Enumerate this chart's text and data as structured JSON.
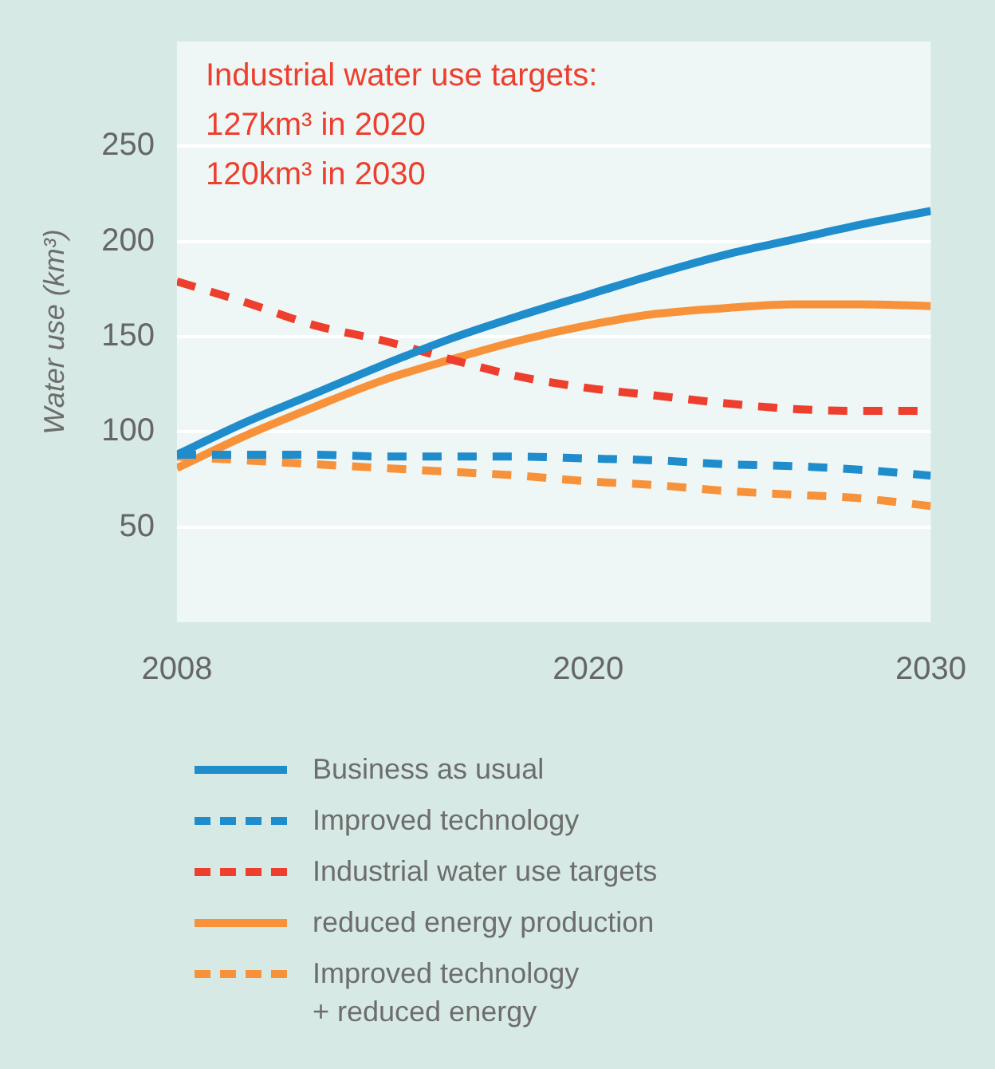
{
  "chart_data": {
    "type": "line",
    "ylabel": "Water use (km³)",
    "annotations": [
      "Industrial water use targets:",
      "127km³ in 2020",
      "120km³ in 2030"
    ],
    "x": [
      2008,
      2010,
      2012,
      2014,
      2016,
      2018,
      2020,
      2022,
      2024,
      2026,
      2028,
      2030
    ],
    "series": [
      {
        "name": "Business as usual",
        "color": "#1f8ccc",
        "line_style": "solid",
        "values": [
          88,
          105,
          120,
          135,
          149,
          161,
          172,
          183,
          193,
          201,
          209,
          216
        ]
      },
      {
        "name": "Improved technology",
        "color": "#1f8ccc",
        "line_style": "dashed",
        "values": [
          88,
          88,
          88,
          87,
          87,
          87,
          86,
          85,
          83,
          82,
          80,
          77
        ]
      },
      {
        "name": "Industrial water use targets",
        "color": "#ee3e2d",
        "line_style": "dashed",
        "values": [
          179,
          168,
          156,
          148,
          138,
          129,
          123,
          119,
          115,
          112,
          111,
          111
        ]
      },
      {
        "name": "reduced energy production",
        "color": "#f7923a",
        "line_style": "solid",
        "values": [
          81,
          98,
          113,
          127,
          138,
          148,
          156,
          162,
          165,
          167,
          167,
          166
        ]
      },
      {
        "name": "Improved technology\n+ reduced energy",
        "color": "#f7923a",
        "line_style": "dashed",
        "values": [
          87,
          85,
          83,
          81,
          79,
          77,
          74,
          72,
          69,
          67,
          65,
          61
        ]
      }
    ],
    "xlim": [
      2008,
      2030
    ],
    "xticks": [
      2008,
      2020,
      2030
    ],
    "ylim": [
      0,
      305
    ],
    "yticks": [
      50,
      100,
      150,
      200,
      250
    ],
    "grid": "y",
    "legend": "bottom",
    "marker": "none"
  }
}
